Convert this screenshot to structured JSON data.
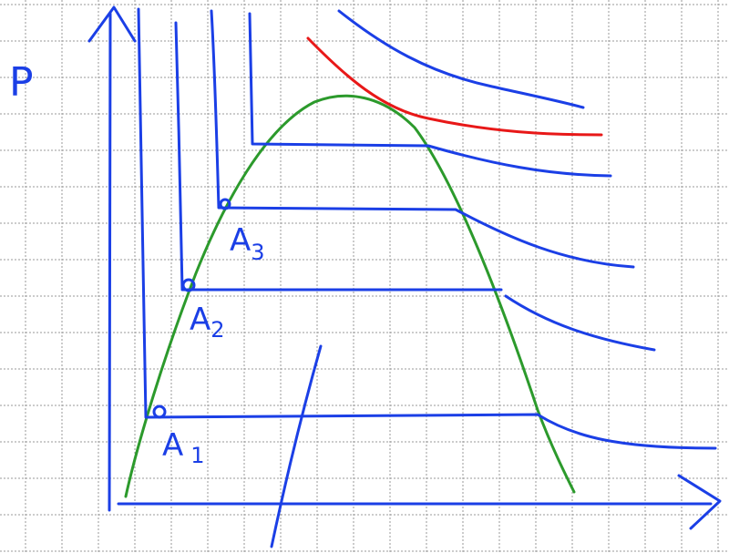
{
  "axis_label": "P",
  "points": [
    {
      "label": "A",
      "subscript": "3"
    },
    {
      "label": "A",
      "subscript": "2"
    },
    {
      "label": "A",
      "subscript": "1"
    }
  ]
}
